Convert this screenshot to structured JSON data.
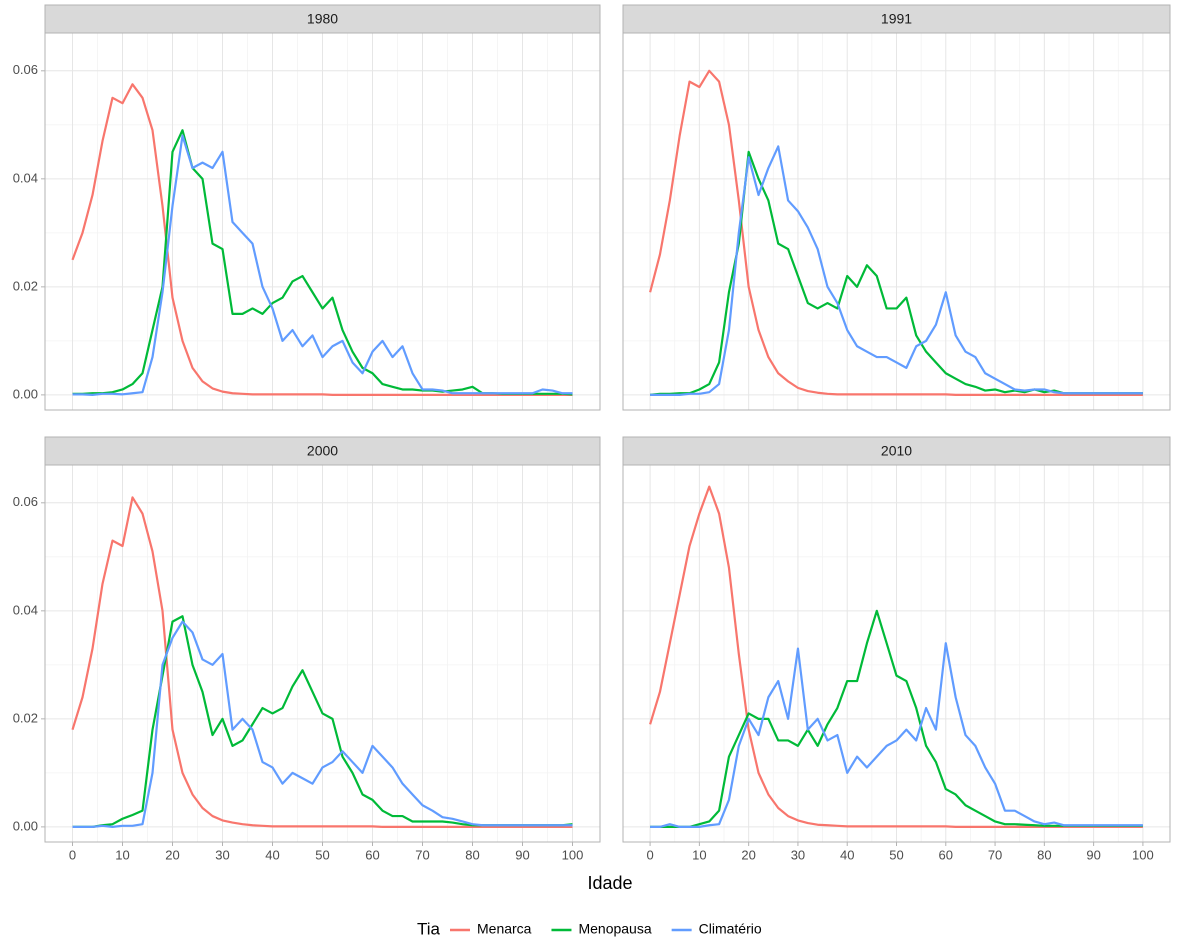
{
  "xlabel": "Idade",
  "legend_title": "Tia",
  "chart_data": [
    {
      "type": "line",
      "title": "1980",
      "x": [
        0,
        2,
        4,
        6,
        8,
        10,
        12,
        14,
        16,
        18,
        20,
        22,
        24,
        26,
        28,
        30,
        32,
        34,
        36,
        38,
        40,
        42,
        44,
        46,
        48,
        50,
        52,
        54,
        56,
        58,
        60,
        62,
        64,
        66,
        68,
        70,
        72,
        74,
        76,
        78,
        80,
        82,
        84,
        86,
        88,
        90,
        92,
        94,
        96,
        98,
        100
      ],
      "xlim": [
        -5.5,
        105.5
      ],
      "xticks": [
        0,
        10,
        20,
        30,
        40,
        50,
        60,
        70,
        80,
        90,
        100
      ],
      "ylim": [
        -0.0028,
        0.067
      ],
      "yticks": [
        {
          "value": 0,
          "label": "0.00"
        },
        {
          "value": 0.02,
          "label": "0.02"
        },
        {
          "value": 0.04,
          "label": "0.04"
        },
        {
          "value": 0.06,
          "label": "0.06"
        }
      ],
      "grid": true,
      "series": [
        {
          "name": "Menarca",
          "color": "#F8766D",
          "values": [
            0.025,
            0.03,
            0.037,
            0.047,
            0.055,
            0.054,
            0.0575,
            0.055,
            0.049,
            0.035,
            0.018,
            0.01,
            0.005,
            0.0025,
            0.0012,
            0.0006,
            0.0003,
            0.0002,
            0.0001,
            0.0001,
            0.0001,
            0.0001,
            0.0001,
            0.0001,
            0.0001,
            0.0001,
            0,
            0,
            0,
            0,
            0,
            0,
            0,
            0,
            0,
            0,
            0,
            0,
            0,
            0,
            0,
            0,
            0,
            0,
            0,
            0,
            0,
            0,
            0,
            0,
            0
          ]
        },
        {
          "name": "Menopausa",
          "color": "#00BA38",
          "values": [
            0.0002,
            0.0002,
            0.0003,
            0.0003,
            0.0005,
            0.001,
            0.002,
            0.004,
            0.012,
            0.02,
            0.045,
            0.049,
            0.042,
            0.04,
            0.028,
            0.027,
            0.015,
            0.015,
            0.016,
            0.015,
            0.017,
            0.018,
            0.021,
            0.022,
            0.019,
            0.016,
            0.018,
            0.012,
            0.008,
            0.005,
            0.004,
            0.002,
            0.0015,
            0.001,
            0.001,
            0.0008,
            0.0008,
            0.0006,
            0.0008,
            0.001,
            0.0015,
            0.0003,
            0.0003,
            0.0002,
            0.0002,
            0.0002,
            0.0002,
            0.0002,
            0.0002,
            0.0002,
            0.0001
          ]
        },
        {
          "name": "Climatério",
          "color": "#619CFF",
          "values": [
            0.0001,
            0.0001,
            0,
            0.0002,
            0.0002,
            0.0001,
            0.0003,
            0.0005,
            0.007,
            0.019,
            0.035,
            0.048,
            0.042,
            0.043,
            0.042,
            0.045,
            0.032,
            0.03,
            0.028,
            0.02,
            0.016,
            0.01,
            0.012,
            0.009,
            0.011,
            0.007,
            0.009,
            0.01,
            0.006,
            0.004,
            0.008,
            0.01,
            0.007,
            0.009,
            0.004,
            0.001,
            0.001,
            0.0008,
            0.0003,
            0.0003,
            0.0003,
            0.0003,
            0.0003,
            0.0003,
            0.0003,
            0.0003,
            0.0003,
            0.001,
            0.0008,
            0.0003,
            0.0003
          ]
        }
      ]
    },
    {
      "type": "line",
      "title": "1991",
      "x": [
        0,
        2,
        4,
        6,
        8,
        10,
        12,
        14,
        16,
        18,
        20,
        22,
        24,
        26,
        28,
        30,
        32,
        34,
        36,
        38,
        40,
        42,
        44,
        46,
        48,
        50,
        52,
        54,
        56,
        58,
        60,
        62,
        64,
        66,
        68,
        70,
        72,
        74,
        76,
        78,
        80,
        82,
        84,
        86,
        88,
        90,
        92,
        94,
        96,
        98,
        100
      ],
      "xlim": [
        -5.5,
        105.5
      ],
      "xticks": [
        0,
        10,
        20,
        30,
        40,
        50,
        60,
        70,
        80,
        90,
        100
      ],
      "ylim": [
        -0.0028,
        0.067
      ],
      "yticks": [
        {
          "value": 0,
          "label": "0.00"
        },
        {
          "value": 0.02,
          "label": "0.02"
        },
        {
          "value": 0.04,
          "label": "0.04"
        },
        {
          "value": 0.06,
          "label": "0.06"
        }
      ],
      "grid": true,
      "series": [
        {
          "name": "Menarca",
          "color": "#F8766D",
          "values": [
            0.019,
            0.026,
            0.036,
            0.048,
            0.058,
            0.057,
            0.06,
            0.058,
            0.05,
            0.036,
            0.02,
            0.012,
            0.007,
            0.004,
            0.0025,
            0.0013,
            0.0007,
            0.0004,
            0.0002,
            0.0001,
            0.0001,
            0.0001,
            0.0001,
            0.0001,
            0.0001,
            0.0001,
            0.0001,
            0.0001,
            0.0001,
            0.0001,
            0.0001,
            0,
            0,
            0,
            0,
            0,
            0,
            0,
            0,
            0,
            0,
            0,
            0,
            0,
            0,
            0,
            0,
            0,
            0,
            0,
            0
          ]
        },
        {
          "name": "Menopausa",
          "color": "#00BA38",
          "values": [
            0,
            0.0002,
            0.0002,
            0.0003,
            0.0003,
            0.001,
            0.002,
            0.006,
            0.019,
            0.028,
            0.045,
            0.04,
            0.036,
            0.028,
            0.027,
            0.022,
            0.017,
            0.016,
            0.017,
            0.016,
            0.022,
            0.02,
            0.024,
            0.022,
            0.016,
            0.016,
            0.018,
            0.011,
            0.008,
            0.006,
            0.004,
            0.003,
            0.002,
            0.0015,
            0.0008,
            0.001,
            0.0005,
            0.0008,
            0.0005,
            0.001,
            0.0005,
            0.0008,
            0.0003,
            0.0003,
            0.0003,
            0.0003,
            0.0003,
            0.0003,
            0.0003,
            0.0003,
            0.0003
          ]
        },
        {
          "name": "Climatério",
          "color": "#619CFF",
          "values": [
            0,
            0,
            0,
            0,
            0.0002,
            0.0002,
            0.0005,
            0.002,
            0.012,
            0.03,
            0.044,
            0.037,
            0.042,
            0.046,
            0.036,
            0.034,
            0.031,
            0.027,
            0.02,
            0.017,
            0.012,
            0.009,
            0.008,
            0.007,
            0.007,
            0.006,
            0.005,
            0.009,
            0.01,
            0.013,
            0.019,
            0.011,
            0.008,
            0.007,
            0.004,
            0.003,
            0.002,
            0.001,
            0.0008,
            0.001,
            0.001,
            0.0005,
            0.0003,
            0.0003,
            0.0003,
            0.0003,
            0.0003,
            0.0003,
            0.0003,
            0.0003,
            0.0003
          ]
        }
      ]
    },
    {
      "type": "line",
      "title": "2000",
      "x": [
        0,
        2,
        4,
        6,
        8,
        10,
        12,
        14,
        16,
        18,
        20,
        22,
        24,
        26,
        28,
        30,
        32,
        34,
        36,
        38,
        40,
        42,
        44,
        46,
        48,
        50,
        52,
        54,
        56,
        58,
        60,
        62,
        64,
        66,
        68,
        70,
        72,
        74,
        76,
        78,
        80,
        82,
        84,
        86,
        88,
        90,
        92,
        94,
        96,
        98,
        100
      ],
      "xlim": [
        -5.5,
        105.5
      ],
      "xticks": [
        0,
        10,
        20,
        30,
        40,
        50,
        60,
        70,
        80,
        90,
        100
      ],
      "ylim": [
        -0.0028,
        0.067
      ],
      "yticks": [
        {
          "value": 0,
          "label": "0.00"
        },
        {
          "value": 0.02,
          "label": "0.02"
        },
        {
          "value": 0.04,
          "label": "0.04"
        },
        {
          "value": 0.06,
          "label": "0.06"
        }
      ],
      "grid": true,
      "series": [
        {
          "name": "Menarca",
          "color": "#F8766D",
          "values": [
            0.018,
            0.024,
            0.033,
            0.045,
            0.053,
            0.052,
            0.061,
            0.058,
            0.051,
            0.04,
            0.018,
            0.01,
            0.006,
            0.0035,
            0.002,
            0.0012,
            0.0008,
            0.0005,
            0.0003,
            0.0002,
            0.0001,
            0.0001,
            0.0001,
            0.0001,
            0.0001,
            0.0001,
            0.0001,
            0.0001,
            0.0001,
            0.0001,
            0.0001,
            0,
            0,
            0,
            0,
            0,
            0,
            0,
            0,
            0,
            0,
            0,
            0,
            0,
            0,
            0,
            0,
            0,
            0,
            0,
            0
          ]
        },
        {
          "name": "Menopausa",
          "color": "#00BA38",
          "values": [
            0,
            0,
            0,
            0.0003,
            0.0005,
            0.0015,
            0.0022,
            0.003,
            0.018,
            0.028,
            0.038,
            0.039,
            0.03,
            0.025,
            0.017,
            0.02,
            0.015,
            0.016,
            0.019,
            0.022,
            0.021,
            0.022,
            0.026,
            0.029,
            0.025,
            0.021,
            0.02,
            0.013,
            0.01,
            0.006,
            0.005,
            0.003,
            0.002,
            0.002,
            0.001,
            0.001,
            0.001,
            0.001,
            0.0008,
            0.0005,
            0.0003,
            0.0003,
            0.0003,
            0.0003,
            0.0003,
            0.0003,
            0.0003,
            0.0003,
            0.0003,
            0.0003,
            0.0005
          ]
        },
        {
          "name": "Climatério",
          "color": "#619CFF",
          "values": [
            0,
            0,
            0,
            0.0002,
            0,
            0.0002,
            0.0002,
            0.0005,
            0.01,
            0.03,
            0.035,
            0.038,
            0.036,
            0.031,
            0.03,
            0.032,
            0.018,
            0.02,
            0.018,
            0.012,
            0.011,
            0.008,
            0.01,
            0.009,
            0.008,
            0.011,
            0.012,
            0.014,
            0.012,
            0.01,
            0.015,
            0.013,
            0.011,
            0.008,
            0.006,
            0.004,
            0.003,
            0.0018,
            0.0015,
            0.001,
            0.0005,
            0.0003,
            0.0003,
            0.0003,
            0.0003,
            0.0003,
            0.0003,
            0.0003,
            0.0003,
            0.0003,
            0.0003
          ]
        }
      ]
    },
    {
      "type": "line",
      "title": "2010",
      "x": [
        0,
        2,
        4,
        6,
        8,
        10,
        12,
        14,
        16,
        18,
        20,
        22,
        24,
        26,
        28,
        30,
        32,
        34,
        36,
        38,
        40,
        42,
        44,
        46,
        48,
        50,
        52,
        54,
        56,
        58,
        60,
        62,
        64,
        66,
        68,
        70,
        72,
        74,
        76,
        78,
        80,
        82,
        84,
        86,
        88,
        90,
        92,
        94,
        96,
        98,
        100
      ],
      "xlim": [
        -5.5,
        105.5
      ],
      "xticks": [
        0,
        10,
        20,
        30,
        40,
        50,
        60,
        70,
        80,
        90,
        100
      ],
      "ylim": [
        -0.0028,
        0.067
      ],
      "yticks": [
        {
          "value": 0,
          "label": "0.00"
        },
        {
          "value": 0.02,
          "label": "0.02"
        },
        {
          "value": 0.04,
          "label": "0.04"
        },
        {
          "value": 0.06,
          "label": "0.06"
        }
      ],
      "grid": true,
      "series": [
        {
          "name": "Menarca",
          "color": "#F8766D",
          "values": [
            0.019,
            0.025,
            0.034,
            0.043,
            0.052,
            0.058,
            0.063,
            0.058,
            0.048,
            0.032,
            0.018,
            0.01,
            0.006,
            0.0035,
            0.002,
            0.0012,
            0.0007,
            0.0004,
            0.0003,
            0.0002,
            0.0001,
            0.0001,
            0.0001,
            0.0001,
            0.0001,
            0.0001,
            0.0001,
            0.0001,
            0.0001,
            0.0001,
            0.0001,
            0,
            0,
            0,
            0,
            0,
            0,
            0,
            0,
            0,
            0,
            0,
            0,
            0,
            0,
            0,
            0,
            0,
            0,
            0,
            0
          ]
        },
        {
          "name": "Menopausa",
          "color": "#00BA38",
          "values": [
            0,
            0,
            0,
            0,
            0,
            0.0005,
            0.001,
            0.003,
            0.013,
            0.017,
            0.021,
            0.02,
            0.02,
            0.016,
            0.016,
            0.015,
            0.018,
            0.015,
            0.019,
            0.022,
            0.027,
            0.027,
            0.034,
            0.04,
            0.034,
            0.028,
            0.027,
            0.022,
            0.015,
            0.012,
            0.007,
            0.006,
            0.004,
            0.003,
            0.002,
            0.001,
            0.0005,
            0.0005,
            0.0004,
            0.0003,
            0.0002,
            0.0002,
            0.0002,
            0.0002,
            0.0002,
            0.0002,
            0.0002,
            0.0002,
            0.0002,
            0.0002,
            0.0002
          ]
        },
        {
          "name": "Climatério",
          "color": "#619CFF",
          "values": [
            0,
            0,
            0.0005,
            0,
            0,
            0,
            0.0003,
            0.0005,
            0.005,
            0.015,
            0.02,
            0.017,
            0.024,
            0.027,
            0.02,
            0.033,
            0.018,
            0.02,
            0.016,
            0.017,
            0.01,
            0.013,
            0.011,
            0.013,
            0.015,
            0.016,
            0.018,
            0.016,
            0.022,
            0.018,
            0.034,
            0.024,
            0.017,
            0.015,
            0.011,
            0.008,
            0.003,
            0.003,
            0.002,
            0.001,
            0.0005,
            0.0008,
            0.0003,
            0.0003,
            0.0003,
            0.0003,
            0.0003,
            0.0003,
            0.0003,
            0.0003,
            0.0003
          ]
        }
      ]
    }
  ]
}
